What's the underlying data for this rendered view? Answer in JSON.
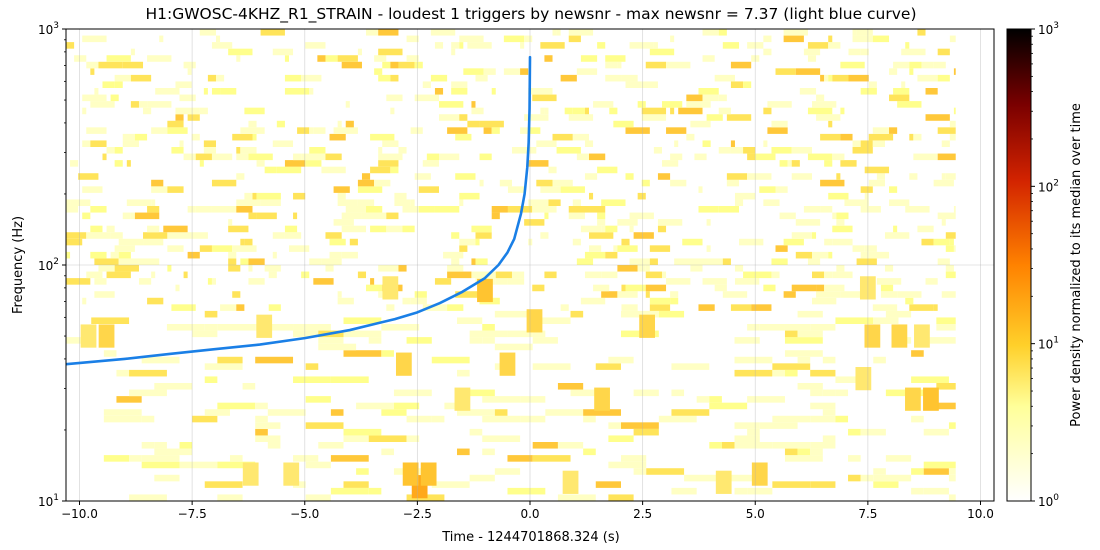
{
  "chart_data": {
    "type": "spectrogram",
    "title": "H1:GWOSC-4KHZ_R1_STRAIN - loudest 1 triggers by newsnr - max newsnr = 7.37 (light blue curve)",
    "xlabel": "Time - 1244701868.324 (s)",
    "ylabel": "Frequency (Hz)",
    "xlim": [
      -10.3,
      10.3
    ],
    "ylim": [
      10,
      1000
    ],
    "y_scale": "log",
    "data_extent_x": [
      -10.3,
      9.45
    ],
    "x_ticks": [
      "−10.0",
      "−7.5",
      "−5.0",
      "−2.5",
      "0.0",
      "2.5",
      "5.0",
      "7.5",
      "10.0"
    ],
    "x_tick_values": [
      -10,
      -7.5,
      -5,
      -2.5,
      0,
      2.5,
      5,
      7.5,
      10
    ],
    "y_ticks": [
      {
        "value": 10,
        "base": "10",
        "exp": "1"
      },
      {
        "value": 100,
        "base": "10",
        "exp": "2"
      },
      {
        "value": 1000,
        "base": "10",
        "exp": "3"
      }
    ],
    "grid": true,
    "colormap": "afmhot_r",
    "colorbar": {
      "label": "Power density normalized to its median over time",
      "scale": "log",
      "range": [
        1,
        1000
      ],
      "ticks": [
        {
          "value": 1,
          "base": "10",
          "exp": "0"
        },
        {
          "value": 10,
          "base": "10",
          "exp": "1"
        },
        {
          "value": 100,
          "base": "10",
          "exp": "2"
        },
        {
          "value": 1000,
          "base": "10",
          "exp": "3"
        }
      ]
    },
    "series": [
      {
        "color": "#1a7fe6",
        "x": [
          -10.3,
          -9.0,
          -8.0,
          -7.0,
          -6.0,
          -5.0,
          -4.0,
          -3.0,
          -2.5,
          -2.0,
          -1.5,
          -1.0,
          -0.7,
          -0.5,
          -0.35,
          -0.2,
          -0.12,
          -0.06,
          -0.03,
          -0.01,
          0.0
        ],
        "y": [
          38,
          40,
          42,
          44,
          46,
          49,
          53,
          59,
          63,
          69,
          77,
          88,
          100,
          113,
          129,
          165,
          200,
          260,
          330,
          460,
          760
        ]
      }
    ],
    "hot_spots": [
      {
        "t": -2.45,
        "f": 11.5,
        "level": 8
      },
      {
        "t": -2.65,
        "f": 13,
        "level": 5
      },
      {
        "t": -2.25,
        "f": 13,
        "level": 5
      },
      {
        "t": -9.4,
        "f": 50,
        "level": 4
      },
      {
        "t": -9.8,
        "f": 50,
        "level": 3
      },
      {
        "t": 7.6,
        "f": 50,
        "level": 4
      },
      {
        "t": 8.2,
        "f": 50,
        "level": 4
      },
      {
        "t": 8.7,
        "f": 50,
        "level": 3
      },
      {
        "t": 8.9,
        "f": 27,
        "level": 5
      },
      {
        "t": 8.5,
        "f": 27,
        "level": 4
      },
      {
        "t": 5.1,
        "f": 13,
        "level": 4
      },
      {
        "t": 4.3,
        "f": 12,
        "level": 3
      },
      {
        "t": -6.2,
        "f": 13,
        "level": 3
      },
      {
        "t": -5.3,
        "f": 13,
        "level": 3
      },
      {
        "t": -1.0,
        "f": 78,
        "level": 5
      },
      {
        "t": -2.8,
        "f": 38,
        "level": 4
      },
      {
        "t": -0.5,
        "f": 38,
        "level": 4
      },
      {
        "t": 0.9,
        "f": 12,
        "level": 3
      },
      {
        "t": 1.6,
        "f": 27,
        "level": 4
      },
      {
        "t": 2.6,
        "f": 55,
        "level": 4
      },
      {
        "t": -5.9,
        "f": 55,
        "level": 3
      },
      {
        "t": 7.5,
        "f": 80,
        "level": 3
      },
      {
        "t": 0.1,
        "f": 58,
        "level": 4
      },
      {
        "t": -1.5,
        "f": 27,
        "level": 3
      },
      {
        "t": -3.1,
        "f": 80,
        "level": 3
      },
      {
        "t": 7.4,
        "f": 33,
        "level": 3
      }
    ]
  }
}
